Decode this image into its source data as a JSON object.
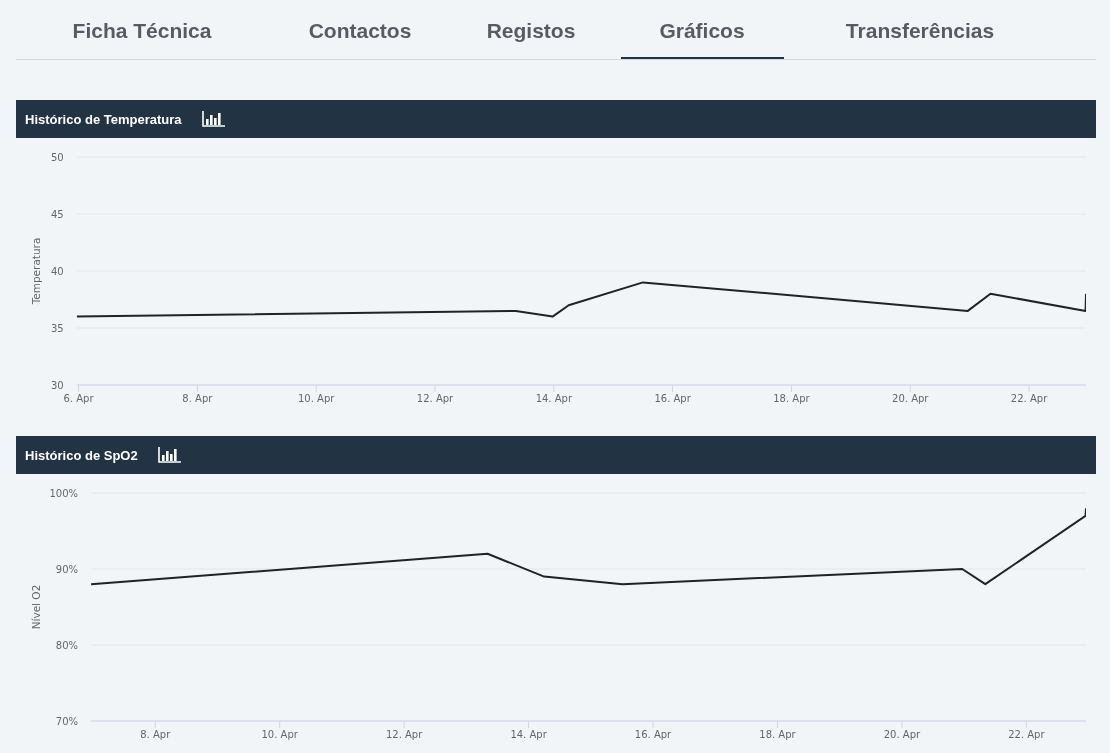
{
  "chart_data": [
    {
      "type": "other",
      "annotations": [
        "Ficha Técnica",
        "Contactos",
        "Registos",
        "Gráficos",
        "Transferências"
      ]
    },
    {
      "type": "line",
      "title": "Histórico de Temperatura",
      "ylabel": "Temperatura",
      "x": [
        "--04-05T23:15",
        "--04-13T08:40",
        "--04-13T23:30",
        "--04-14T06:00",
        "--04-15T12:00",
        "--04-20T23:15",
        "--04-21T08:25",
        "--04-22T22:50",
        "--04-22T23:00"
      ],
      "values": [
        36,
        36.5,
        36,
        37,
        39,
        36.5,
        38,
        36.5,
        38
      ],
      "color": "#1e2328",
      "xlim": [
        "--04-05T23:15",
        "--04-22T23:00"
      ],
      "xticks": [
        {
          "value": "--04-06",
          "label": "6. Apr"
        },
        {
          "value": "--04-08",
          "label": "8. Apr"
        },
        {
          "value": "--04-10",
          "label": "10. Apr"
        },
        {
          "value": "--04-12",
          "label": "12. Apr"
        },
        {
          "value": "--04-14",
          "label": "14. Apr"
        },
        {
          "value": "--04-16",
          "label": "16. Apr"
        },
        {
          "value": "--04-18",
          "label": "18. Apr"
        },
        {
          "value": "--04-20",
          "label": "20. Apr"
        },
        {
          "value": "--04-22",
          "label": "22. Apr"
        }
      ],
      "ylim": [
        30,
        50
      ],
      "yticks": [
        30,
        35,
        40,
        45,
        50
      ],
      "grid": "y",
      "marker": "none",
      "line_style": "solid"
    },
    {
      "type": "line",
      "title": "Histórico de SpO2",
      "ylabel": "Nível O2",
      "x": [
        "--04-06T23:15",
        "--04-13T08:10",
        "--04-14T06:00",
        "--04-15T12:15",
        "--04-20T23:15",
        "--04-21T08:10",
        "--04-22T22:50",
        "--04-22T23:00"
      ],
      "values": [
        88,
        92,
        89,
        88,
        90,
        88,
        97,
        98
      ],
      "color": "#1e2328",
      "xlim": [
        "--04-06T23:15",
        "--04-22T23:00"
      ],
      "xticks": [
        {
          "value": "--04-08",
          "label": "8. Apr"
        },
        {
          "value": "--04-10",
          "label": "10. Apr"
        },
        {
          "value": "--04-12",
          "label": "12. Apr"
        },
        {
          "value": "--04-14",
          "label": "14. Apr"
        },
        {
          "value": "--04-16",
          "label": "16. Apr"
        },
        {
          "value": "--04-18",
          "label": "18. Apr"
        },
        {
          "value": "--04-20",
          "label": "20. Apr"
        },
        {
          "value": "--04-22",
          "label": "22. Apr"
        }
      ],
      "ylim": [
        70,
        100
      ],
      "yticks": [
        {
          "value": 70,
          "label": "70%"
        },
        {
          "value": 80,
          "label": "80%"
        },
        {
          "value": 90,
          "label": "90%"
        },
        {
          "value": 100,
          "label": "100%"
        }
      ],
      "grid": "y",
      "marker": "none",
      "line_style": "solid"
    }
  ]
}
